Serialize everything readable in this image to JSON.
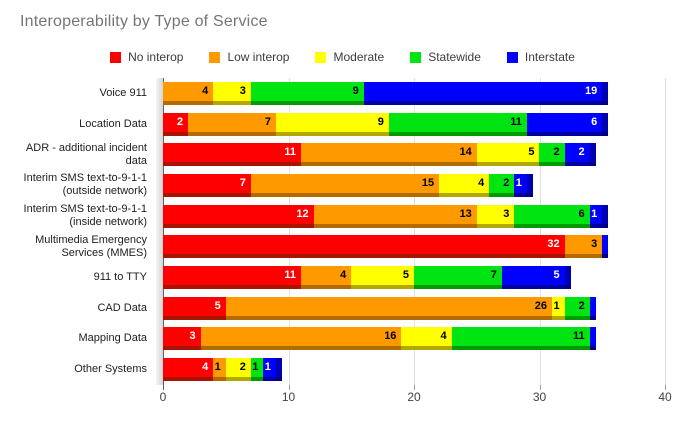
{
  "title": "Interoperability by Type of Service",
  "colors": {
    "background": "#ffffff",
    "title_text": "#757575",
    "axis_text": "#424242",
    "gridline": "#e0e0e0",
    "cap_bright": "#0000ff",
    "cap_dark": "#0000b3",
    "cap_edge": "#000080"
  },
  "chart_data": {
    "type": "bar",
    "orientation": "horizontal",
    "stacked": true,
    "title": "Interoperability by Type of Service",
    "xlabel": "",
    "ylabel": "",
    "xlim": [
      0,
      40
    ],
    "xticks": [
      0,
      10,
      20,
      30,
      40
    ],
    "grid": "vertical",
    "legend_position": "top-center",
    "categories": [
      "Voice 911",
      "Location Data",
      "ADR - additional incident\ndata",
      "Interim SMS text-to-9-1-1\n(outside network)",
      "Interim SMS text-to-9-1-1\n(inside network)",
      "Multimedia Emergency\nServices (MMES)",
      "911 to TTY",
      "CAD Data",
      "Mapping Data",
      "Other Systems"
    ],
    "series": [
      {
        "name": "No interop",
        "color": "#ff0000",
        "dark": "#a81400",
        "label_color": "#ffffff",
        "values": [
          0,
          2,
          11,
          7,
          12,
          32,
          11,
          5,
          3,
          4
        ]
      },
      {
        "name": "Low interop",
        "color": "#ff9900",
        "dark": "#b36b00",
        "label_color": "#000000",
        "values": [
          4,
          7,
          14,
          15,
          13,
          3,
          4,
          26,
          16,
          1
        ]
      },
      {
        "name": "Moderate",
        "color": "#ffff00",
        "dark": "#b3a800",
        "label_color": "#000000",
        "values": [
          3,
          9,
          5,
          4,
          3,
          0,
          5,
          1,
          4,
          2
        ]
      },
      {
        "name": "Statewide",
        "color": "#00e512",
        "dark": "#009b00",
        "label_color": "#000000",
        "values": [
          9,
          11,
          2,
          2,
          6,
          0,
          7,
          2,
          11,
          1
        ]
      },
      {
        "name": "Interstate",
        "color": "#0000ff",
        "dark": "#0000a0",
        "label_color": "#ffffff",
        "values": [
          19,
          6,
          2,
          1,
          1,
          0,
          5,
          0,
          0,
          1
        ]
      }
    ]
  }
}
